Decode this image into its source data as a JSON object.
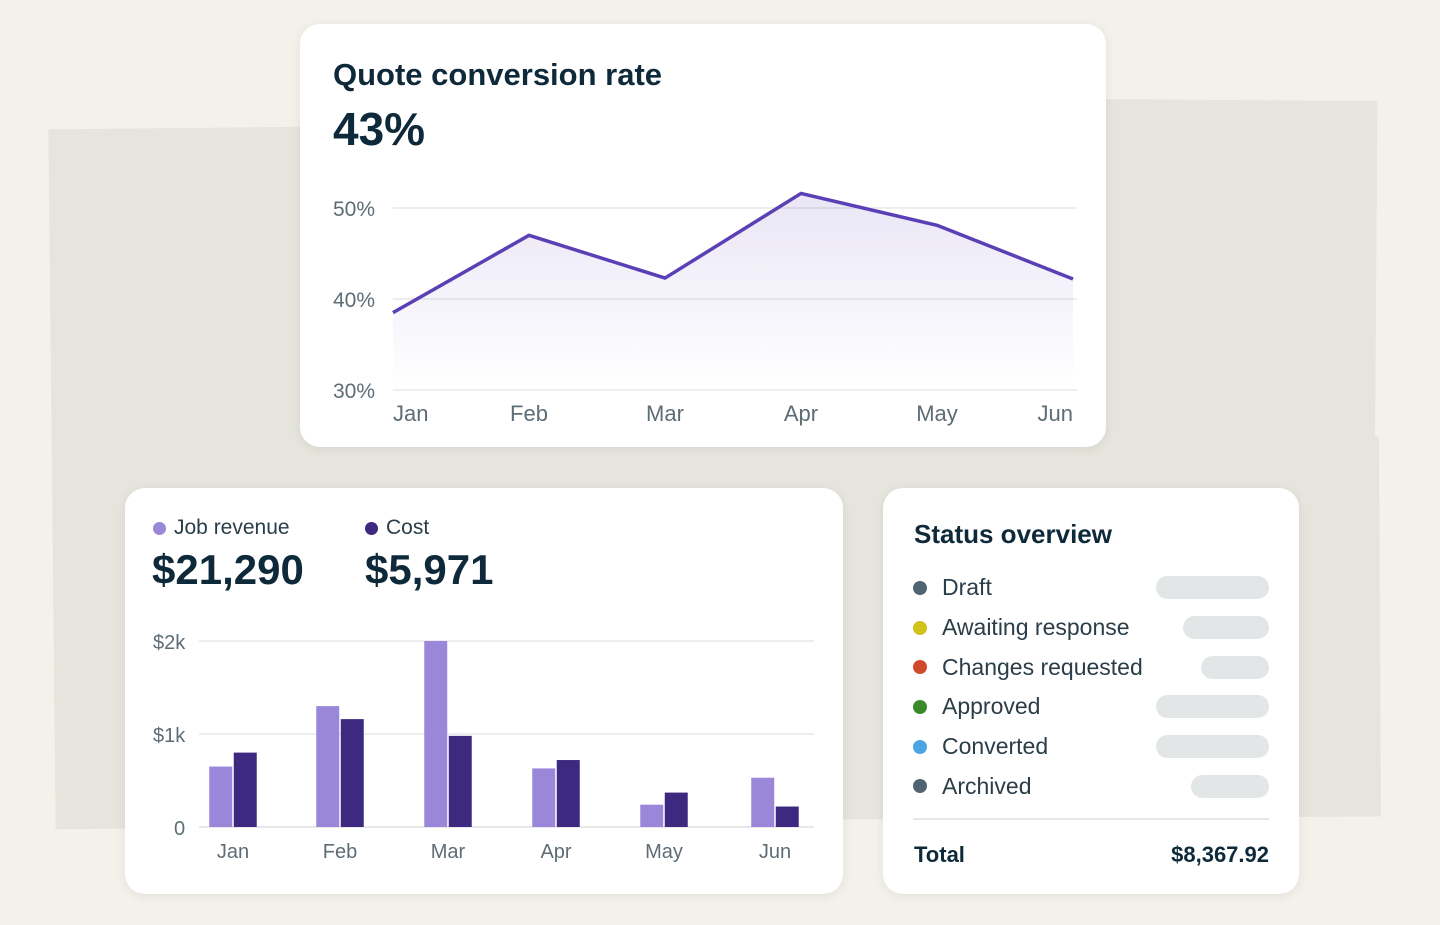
{
  "colors": {
    "line": "#5b3fb5",
    "revenue": "#9b87d9",
    "cost": "#3d2a80",
    "grid": "#e6e8ea",
    "axis_text": "#5d6d75"
  },
  "conversion": {
    "title": "Quote conversion rate",
    "value": "43%",
    "chart_data": {
      "type": "area",
      "categories": [
        "Jan",
        "Feb",
        "Mar",
        "Apr",
        "May",
        "Jun"
      ],
      "values": [
        38.5,
        47,
        42.3,
        51.6,
        48.1,
        42.2
      ],
      "ylim": [
        30,
        50
      ],
      "yticks": [
        30,
        40,
        50
      ],
      "ytick_labels": [
        "30%",
        "40%",
        "50%"
      ],
      "grid": true
    }
  },
  "revenue": {
    "legend": [
      {
        "label": "Job revenue",
        "value": "$21,290",
        "color": "#9b87d9"
      },
      {
        "label": "Cost",
        "value": "$5,971",
        "color": "#3d2a80"
      }
    ],
    "chart_data": {
      "type": "bar",
      "categories": [
        "Jan",
        "Feb",
        "Mar",
        "Apr",
        "May",
        "Jun"
      ],
      "series": [
        {
          "name": "Job revenue",
          "values": [
            650,
            1300,
            2000,
            630,
            240,
            530
          ]
        },
        {
          "name": "Cost",
          "values": [
            800,
            1160,
            980,
            720,
            370,
            220
          ]
        }
      ],
      "ylim": [
        0,
        2000
      ],
      "yticks": [
        0,
        1000,
        2000
      ],
      "ytick_labels": [
        "0",
        "$1k",
        "$2k"
      ],
      "grid": true
    }
  },
  "status": {
    "title": "Status overview",
    "items": [
      {
        "label": "Draft",
        "color": "#4f6470",
        "level": 0.55
      },
      {
        "label": "Awaiting response",
        "color": "#d4c21c",
        "level": 0.42
      },
      {
        "label": "Changes requested",
        "color": "#cf4a2a",
        "level": 0.33
      },
      {
        "label": "Approved",
        "color": "#3a8a2c",
        "level": 0.55
      },
      {
        "label": "Converted",
        "color": "#4aa5e0",
        "level": 0.55
      },
      {
        "label": "Archived",
        "color": "#4f6470",
        "level": 0.38
      }
    ],
    "total_label": "Total",
    "total_value": "$8,367.92"
  }
}
